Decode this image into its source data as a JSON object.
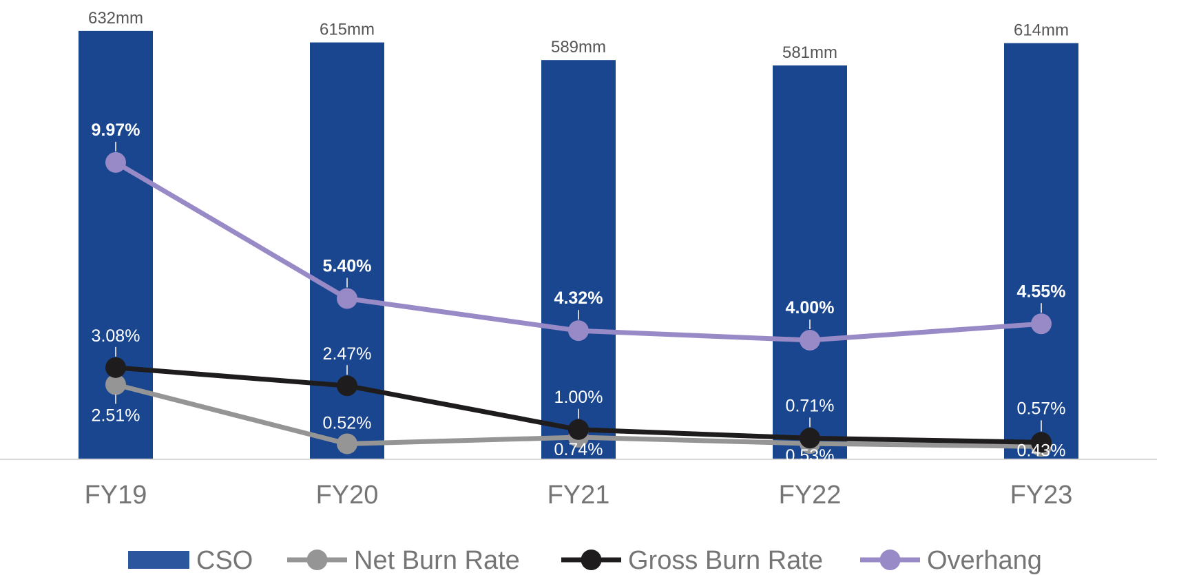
{
  "chart_data": {
    "type": "bar",
    "title": "",
    "xlabel": "",
    "ylabel": "",
    "categories": [
      "FY19",
      "FY20",
      "FY21",
      "FY22",
      "FY23"
    ],
    "bars": {
      "name": "CSO",
      "values": [
        632,
        615,
        589,
        581,
        614
      ],
      "labels": [
        "632mm",
        "615mm",
        "589mm",
        "581mm",
        "614mm"
      ],
      "color": "#1a468f",
      "ylim": [
        0,
        640
      ]
    },
    "lines": [
      {
        "name": "Net Burn Rate",
        "values": [
          2.51,
          0.52,
          0.74,
          0.53,
          0.43
        ],
        "labels": [
          "2.51%",
          "0.52%",
          "0.74%",
          "0.53%",
          "0.43%"
        ],
        "color": "#959595"
      },
      {
        "name": "Gross Burn Rate",
        "values": [
          3.08,
          2.47,
          1.0,
          0.71,
          0.57
        ],
        "labels": [
          "3.08%",
          "2.47%",
          "1.00%",
          "0.71%",
          "0.57%"
        ],
        "color": "#1e1c1d"
      },
      {
        "name": "Overhang",
        "values": [
          9.97,
          5.4,
          4.32,
          4.0,
          4.55
        ],
        "labels": [
          "9.97%",
          "5.40%",
          "4.32%",
          "4.00%",
          "4.55%"
        ],
        "color": "#988ac6"
      }
    ],
    "line_ylim": [
      0,
      14.5
    ],
    "legend": {
      "position": "bottom",
      "entries": [
        "CSO",
        "Net Burn Rate",
        "Gross Burn Rate",
        "Overhang"
      ],
      "cso_swatch_color": "#2c579f"
    },
    "grid": false
  }
}
